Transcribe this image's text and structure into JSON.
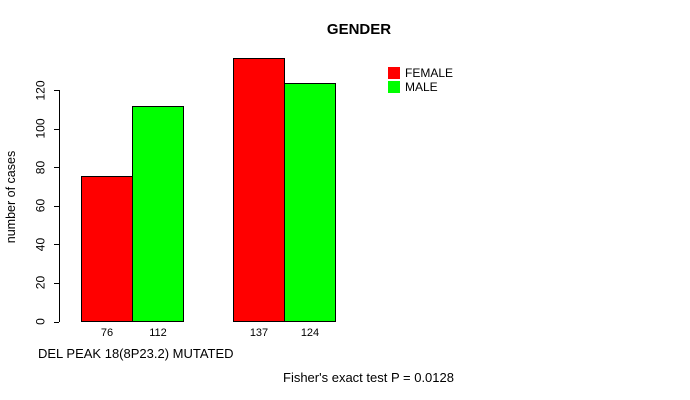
{
  "chart_data": {
    "type": "bar",
    "title": "GENDER",
    "ylabel": "number of cases",
    "yticks": [
      0,
      20,
      40,
      60,
      80,
      100,
      120
    ],
    "ylim": [
      0,
      140
    ],
    "grid": false,
    "legend_position": "top-right",
    "series": [
      {
        "name": "FEMALE",
        "color": "#FF0000",
        "values": [
          76,
          137
        ]
      },
      {
        "name": "MALE",
        "color": "#00FF00",
        "values": [
          112,
          124
        ]
      }
    ],
    "bar_value_labels": [
      "76",
      "112",
      "137",
      "124"
    ],
    "annotations": {
      "x_note": "DEL PEAK 18(8P23.2) MUTATED",
      "footer": "Fisher's exact test P = 0.0128"
    }
  }
}
